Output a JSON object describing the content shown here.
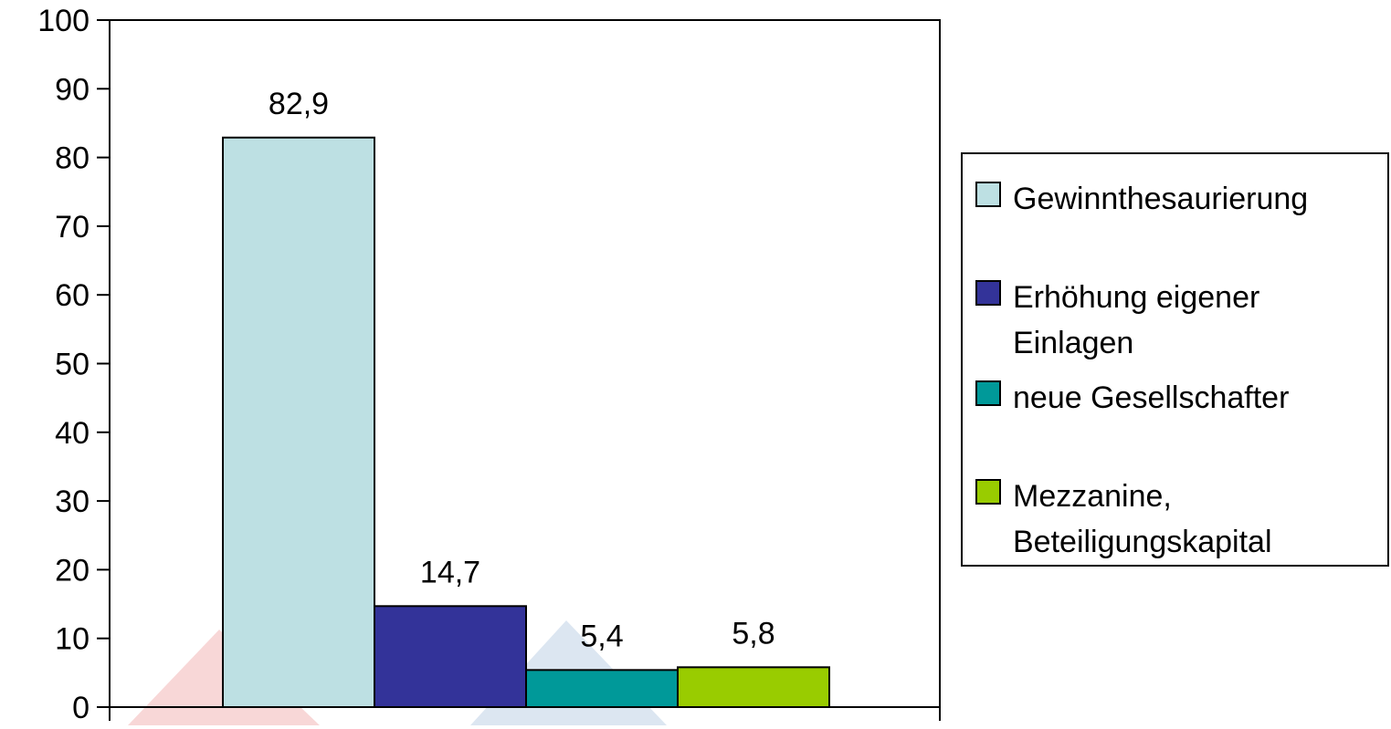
{
  "chart_data": {
    "type": "bar",
    "categories": [
      "Gewinnthesaurierung",
      "Erhöhung eigener Einlagen",
      "neue Gesellschafter",
      "Mezzanine, Beteiligungskapital"
    ],
    "values": [
      82.9,
      14.7,
      5.4,
      5.8
    ],
    "data_labels": [
      "82,9",
      "14,7",
      "5,4",
      "5,8"
    ],
    "y_ticks": [
      0,
      10,
      20,
      30,
      40,
      50,
      60,
      70,
      80,
      90,
      100
    ],
    "ylim": [
      0,
      100
    ],
    "grid": false,
    "legend_position": "right",
    "legend": [
      {
        "lines": [
          "Gewinnthesaurierung"
        ],
        "color": "#bde0e3"
      },
      {
        "lines": [
          "Erhöhung eigener",
          "Einlagen"
        ],
        "color": "#333399"
      },
      {
        "lines": [
          "neue Gesellschafter"
        ],
        "color": "#009999"
      },
      {
        "lines": [
          "Mezzanine,",
          "Beteiligungskapital"
        ],
        "color": "#99cc00"
      }
    ],
    "colors": [
      "#bde0e3",
      "#333399",
      "#009999",
      "#99cc00"
    ]
  }
}
